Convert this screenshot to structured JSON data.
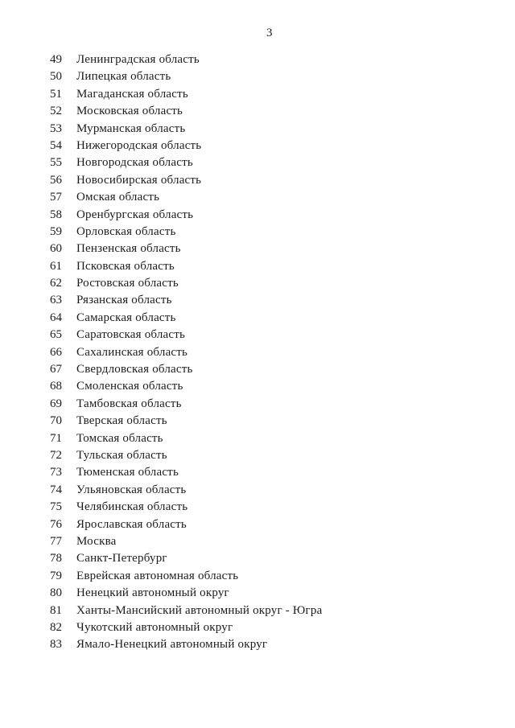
{
  "page": {
    "number": "3"
  },
  "regions": {
    "items": [
      {
        "num": "49",
        "name": "Ленинградская область"
      },
      {
        "num": "50",
        "name": "Липецкая область"
      },
      {
        "num": "51",
        "name": "Магаданская область"
      },
      {
        "num": "52",
        "name": "Московская область"
      },
      {
        "num": "53",
        "name": "Мурманская область"
      },
      {
        "num": "54",
        "name": "Нижегородская область"
      },
      {
        "num": "55",
        "name": "Новгородская область"
      },
      {
        "num": "56",
        "name": "Новосибирская область"
      },
      {
        "num": "57",
        "name": "Омская область"
      },
      {
        "num": "58",
        "name": "Оренбургская область"
      },
      {
        "num": "59",
        "name": "Орловская область"
      },
      {
        "num": "60",
        "name": "Пензенская область"
      },
      {
        "num": "61",
        "name": "Псковская область"
      },
      {
        "num": "62",
        "name": "Ростовская область"
      },
      {
        "num": "63",
        "name": "Рязанская область"
      },
      {
        "num": "64",
        "name": "Самарская область"
      },
      {
        "num": "65",
        "name": "Саратовская область"
      },
      {
        "num": "66",
        "name": "Сахалинская область"
      },
      {
        "num": "67",
        "name": "Свердловская область"
      },
      {
        "num": "68",
        "name": "Смоленская область"
      },
      {
        "num": "69",
        "name": "Тамбовская область"
      },
      {
        "num": "70",
        "name": "Тверская область"
      },
      {
        "num": "71",
        "name": "Томская область"
      },
      {
        "num": "72",
        "name": "Тульская область"
      },
      {
        "num": "73",
        "name": "Тюменская область"
      },
      {
        "num": "74",
        "name": "Ульяновская область"
      },
      {
        "num": "75",
        "name": "Челябинская область"
      },
      {
        "num": "76",
        "name": "Ярославская область"
      },
      {
        "num": "77",
        "name": "Москва"
      },
      {
        "num": "78",
        "name": "Санкт-Петербург"
      },
      {
        "num": "79",
        "name": "Еврейская автономная область"
      },
      {
        "num": "80",
        "name": "Ненецкий автономный округ"
      },
      {
        "num": "81",
        "name": "Ханты-Мансийский автономный округ - Югра"
      },
      {
        "num": "82",
        "name": "Чукотский автономный округ"
      },
      {
        "num": "83",
        "name": "Ямало-Ненецкий автономный округ"
      }
    ]
  },
  "colors": {
    "ink": "#1c1c1c",
    "paper": "#ffffff"
  }
}
